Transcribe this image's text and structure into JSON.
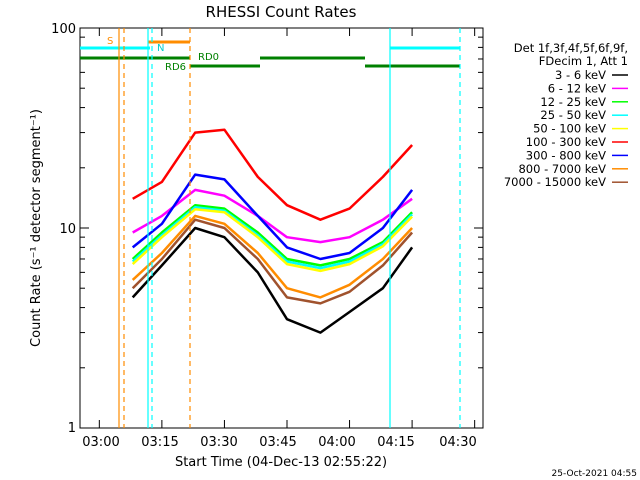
{
  "chart_data": {
    "type": "line",
    "title": "RHESSI Count Rates",
    "xlabel": "Start Time (04-Dec-13 02:55:22)",
    "ylabel": "Count Rate (s⁻¹ detector segment⁻¹)",
    "y_scale": "log",
    "ylim": [
      1,
      100
    ],
    "xlim": [
      "02:55:22",
      "04:32:00"
    ],
    "x_ticks": [
      "03:00",
      "03:15",
      "03:30",
      "03:45",
      "04:00",
      "04:15",
      "04:30"
    ],
    "y_ticks": [
      "1",
      "10",
      "100"
    ],
    "legend_position": "top-right",
    "legend_header": [
      "Det 1f,3f,4f,5f,6f,9f,",
      "FDecim 1, Att 1"
    ],
    "x": [
      "03:08",
      "03:15",
      "03:23",
      "03:30",
      "03:38",
      "03:45",
      "03:53",
      "04:00",
      "04:08",
      "04:15"
    ],
    "series": [
      {
        "name": "3 - 6 keV",
        "color": "#000000",
        "values": [
          4.5,
          6.5,
          10.0,
          9.0,
          6.0,
          3.5,
          3.0,
          3.8,
          5.0,
          8.0
        ]
      },
      {
        "name": "6 - 12 keV",
        "color": "#ff00ff",
        "values": [
          9.5,
          11.5,
          15.5,
          14.5,
          11.5,
          9.0,
          8.5,
          9.0,
          11.0,
          14.0
        ]
      },
      {
        "name": "12 - 25 keV",
        "color": "#00ff00",
        "values": [
          7.0,
          9.5,
          13.0,
          12.5,
          9.5,
          7.0,
          6.5,
          7.0,
          8.5,
          12.0
        ]
      },
      {
        "name": "25 - 50 keV",
        "color": "#00ffff",
        "values": [
          6.8,
          9.2,
          12.7,
          12.2,
          9.2,
          6.8,
          6.3,
          6.8,
          8.3,
          11.7
        ]
      },
      {
        "name": "50 - 100 keV",
        "color": "#ffff00",
        "values": [
          6.6,
          9.0,
          12.4,
          12.0,
          9.0,
          6.6,
          6.1,
          6.6,
          8.1,
          11.4
        ]
      },
      {
        "name": "100 - 300 keV",
        "color": "#ff0000",
        "values": [
          14.0,
          17.0,
          30.0,
          31.0,
          18.0,
          13.0,
          11.0,
          12.5,
          18.0,
          26.0
        ]
      },
      {
        "name": "300 - 800 keV",
        "color": "#0000ff",
        "values": [
          8.0,
          10.5,
          18.5,
          17.5,
          11.5,
          8.0,
          7.0,
          7.5,
          10.0,
          15.5
        ]
      },
      {
        "name": "800 - 7000 keV",
        "color": "#ff8c00",
        "values": [
          5.5,
          7.5,
          11.5,
          10.5,
          7.5,
          5.0,
          4.5,
          5.2,
          7.0,
          10.0
        ]
      },
      {
        "name": "7000 - 15000 keV",
        "color": "#a0522d",
        "values": [
          5.0,
          7.0,
          11.0,
          10.0,
          7.0,
          4.5,
          4.2,
          4.8,
          6.5,
          9.5
        ]
      }
    ],
    "annotations": {
      "s_label": "S",
      "n_label": "N",
      "rd0_label": "RD0",
      "rd6_label": "RD6"
    },
    "timestamp": "25-Oct-2021 04:55"
  }
}
